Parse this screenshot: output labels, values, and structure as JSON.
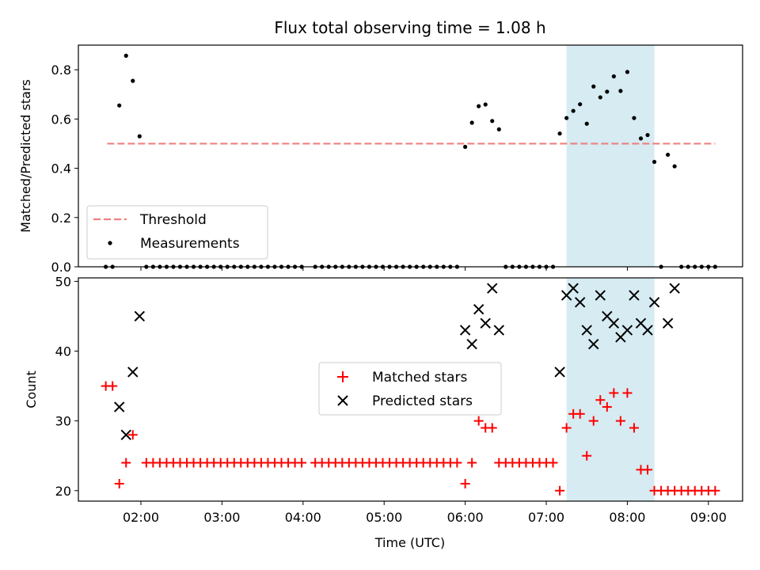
{
  "chart_data": [
    {
      "type": "scatter",
      "title": "Flux total observing time = 1.08 h",
      "xlabel": "",
      "ylabel": "Matched/Predicted stars",
      "ylim": [
        0,
        0.9
      ],
      "yticks": [
        "0.0",
        "0.2",
        "0.4",
        "0.6",
        "0.8"
      ],
      "grid": false,
      "legend_position": "lower-left",
      "highlight_band": {
        "start": "07:15",
        "end": "08:20",
        "color": "#add8e6"
      },
      "series": [
        {
          "name": "Threshold",
          "style": "dashed-line",
          "color": "#f08080",
          "points": [
            {
              "x": "01:35",
              "y": 0.5
            },
            {
              "x": "09:05",
              "y": 0.5
            }
          ]
        },
        {
          "name": "Measurements",
          "style": "dot",
          "color": "#000000",
          "points": [
            {
              "x": "01:34",
              "y": 0
            },
            {
              "x": "01:39",
              "y": 0
            },
            {
              "x": "01:44",
              "y": 0.655
            },
            {
              "x": "01:49",
              "y": 0.857
            },
            {
              "x": "01:54",
              "y": 0.755
            },
            {
              "x": "01:59",
              "y": 0.53
            },
            {
              "x": "02:04",
              "y": 0
            },
            {
              "x": "02:09",
              "y": 0
            },
            {
              "x": "02:14",
              "y": 0
            },
            {
              "x": "02:19",
              "y": 0
            },
            {
              "x": "02:24",
              "y": 0
            },
            {
              "x": "02:29",
              "y": 0
            },
            {
              "x": "02:34",
              "y": 0
            },
            {
              "x": "02:39",
              "y": 0
            },
            {
              "x": "02:44",
              "y": 0
            },
            {
              "x": "02:49",
              "y": 0
            },
            {
              "x": "02:54",
              "y": 0
            },
            {
              "x": "02:59",
              "y": 0
            },
            {
              "x": "03:04",
              "y": 0
            },
            {
              "x": "03:09",
              "y": 0
            },
            {
              "x": "03:14",
              "y": 0
            },
            {
              "x": "03:19",
              "y": 0
            },
            {
              "x": "03:24",
              "y": 0
            },
            {
              "x": "03:29",
              "y": 0
            },
            {
              "x": "03:34",
              "y": 0
            },
            {
              "x": "03:39",
              "y": 0
            },
            {
              "x": "03:44",
              "y": 0
            },
            {
              "x": "03:49",
              "y": 0
            },
            {
              "x": "03:54",
              "y": 0
            },
            {
              "x": "03:59",
              "y": 0
            },
            {
              "x": "04:09",
              "y": 0
            },
            {
              "x": "04:14",
              "y": 0
            },
            {
              "x": "04:19",
              "y": 0
            },
            {
              "x": "04:24",
              "y": 0
            },
            {
              "x": "04:29",
              "y": 0
            },
            {
              "x": "04:34",
              "y": 0
            },
            {
              "x": "04:39",
              "y": 0
            },
            {
              "x": "04:44",
              "y": 0
            },
            {
              "x": "04:49",
              "y": 0
            },
            {
              "x": "04:54",
              "y": 0
            },
            {
              "x": "04:59",
              "y": 0
            },
            {
              "x": "05:04",
              "y": 0
            },
            {
              "x": "05:09",
              "y": 0
            },
            {
              "x": "05:14",
              "y": 0
            },
            {
              "x": "05:19",
              "y": 0
            },
            {
              "x": "05:24",
              "y": 0
            },
            {
              "x": "05:29",
              "y": 0
            },
            {
              "x": "05:34",
              "y": 0
            },
            {
              "x": "05:39",
              "y": 0
            },
            {
              "x": "05:44",
              "y": 0
            },
            {
              "x": "05:49",
              "y": 0
            },
            {
              "x": "05:54",
              "y": 0
            },
            {
              "x": "06:00",
              "y": 0.487
            },
            {
              "x": "06:05",
              "y": 0.585
            },
            {
              "x": "06:10",
              "y": 0.652
            },
            {
              "x": "06:15",
              "y": 0.659
            },
            {
              "x": "06:20",
              "y": 0.592
            },
            {
              "x": "06:25",
              "y": 0.558
            },
            {
              "x": "06:30",
              "y": 0
            },
            {
              "x": "06:35",
              "y": 0
            },
            {
              "x": "06:40",
              "y": 0
            },
            {
              "x": "06:45",
              "y": 0
            },
            {
              "x": "06:50",
              "y": 0
            },
            {
              "x": "06:55",
              "y": 0
            },
            {
              "x": "07:00",
              "y": 0
            },
            {
              "x": "07:05",
              "y": 0
            },
            {
              "x": "07:10",
              "y": 0.541
            },
            {
              "x": "07:15",
              "y": 0.604
            },
            {
              "x": "07:20",
              "y": 0.633
            },
            {
              "x": "07:25",
              "y": 0.66
            },
            {
              "x": "07:30",
              "y": 0.581
            },
            {
              "x": "07:35",
              "y": 0.732
            },
            {
              "x": "07:40",
              "y": 0.688
            },
            {
              "x": "07:45",
              "y": 0.711
            },
            {
              "x": "07:50",
              "y": 0.773
            },
            {
              "x": "07:55",
              "y": 0.714
            },
            {
              "x": "08:00",
              "y": 0.791
            },
            {
              "x": "08:05",
              "y": 0.604
            },
            {
              "x": "08:10",
              "y": 0.521
            },
            {
              "x": "08:15",
              "y": 0.535
            },
            {
              "x": "08:20",
              "y": 0.426
            },
            {
              "x": "08:25",
              "y": 0
            },
            {
              "x": "08:30",
              "y": 0.455
            },
            {
              "x": "08:35",
              "y": 0.408
            },
            {
              "x": "08:40",
              "y": 0
            },
            {
              "x": "08:45",
              "y": 0
            },
            {
              "x": "08:50",
              "y": 0
            },
            {
              "x": "08:55",
              "y": 0
            },
            {
              "x": "09:00",
              "y": 0
            },
            {
              "x": "09:05",
              "y": 0
            }
          ]
        }
      ]
    },
    {
      "type": "scatter",
      "title": "",
      "xlabel": "Time (UTC)",
      "ylabel": "Count",
      "ylim": [
        18.5,
        50.5
      ],
      "yticks": [
        "20",
        "30",
        "40",
        "50"
      ],
      "xticks": [
        "02:00",
        "03:00",
        "04:00",
        "05:00",
        "06:00",
        "07:00",
        "08:00",
        "09:00"
      ],
      "grid": false,
      "legend_position": "center",
      "highlight_band": {
        "start": "07:15",
        "end": "08:20",
        "color": "#add8e6"
      },
      "series": [
        {
          "name": "Matched stars",
          "marker": "plus",
          "color": "#ff0000",
          "points": [
            {
              "x": "01:34",
              "y": 35
            },
            {
              "x": "01:39",
              "y": 35
            },
            {
              "x": "01:44",
              "y": 21
            },
            {
              "x": "01:49",
              "y": 24
            },
            {
              "x": "01:54",
              "y": 28
            },
            {
              "x": "02:04",
              "y": 24
            },
            {
              "x": "02:09",
              "y": 24
            },
            {
              "x": "02:14",
              "y": 24
            },
            {
              "x": "02:19",
              "y": 24
            },
            {
              "x": "02:24",
              "y": 24
            },
            {
              "x": "02:29",
              "y": 24
            },
            {
              "x": "02:34",
              "y": 24
            },
            {
              "x": "02:39",
              "y": 24
            },
            {
              "x": "02:44",
              "y": 24
            },
            {
              "x": "02:49",
              "y": 24
            },
            {
              "x": "02:54",
              "y": 24
            },
            {
              "x": "02:59",
              "y": 24
            },
            {
              "x": "03:04",
              "y": 24
            },
            {
              "x": "03:09",
              "y": 24
            },
            {
              "x": "03:14",
              "y": 24
            },
            {
              "x": "03:19",
              "y": 24
            },
            {
              "x": "03:24",
              "y": 24
            },
            {
              "x": "03:29",
              "y": 24
            },
            {
              "x": "03:34",
              "y": 24
            },
            {
              "x": "03:39",
              "y": 24
            },
            {
              "x": "03:44",
              "y": 24
            },
            {
              "x": "03:49",
              "y": 24
            },
            {
              "x": "03:54",
              "y": 24
            },
            {
              "x": "03:59",
              "y": 24
            },
            {
              "x": "04:09",
              "y": 24
            },
            {
              "x": "04:14",
              "y": 24
            },
            {
              "x": "04:19",
              "y": 24
            },
            {
              "x": "04:24",
              "y": 24
            },
            {
              "x": "04:29",
              "y": 24
            },
            {
              "x": "04:34",
              "y": 24
            },
            {
              "x": "04:39",
              "y": 24
            },
            {
              "x": "04:44",
              "y": 24
            },
            {
              "x": "04:49",
              "y": 24
            },
            {
              "x": "04:54",
              "y": 24
            },
            {
              "x": "04:59",
              "y": 24
            },
            {
              "x": "05:04",
              "y": 24
            },
            {
              "x": "05:09",
              "y": 24
            },
            {
              "x": "05:14",
              "y": 24
            },
            {
              "x": "05:19",
              "y": 24
            },
            {
              "x": "05:24",
              "y": 24
            },
            {
              "x": "05:29",
              "y": 24
            },
            {
              "x": "05:34",
              "y": 24
            },
            {
              "x": "05:39",
              "y": 24
            },
            {
              "x": "05:44",
              "y": 24
            },
            {
              "x": "05:49",
              "y": 24
            },
            {
              "x": "05:54",
              "y": 24
            },
            {
              "x": "06:00",
              "y": 21
            },
            {
              "x": "06:05",
              "y": 24
            },
            {
              "x": "06:10",
              "y": 30
            },
            {
              "x": "06:15",
              "y": 29
            },
            {
              "x": "06:20",
              "y": 29
            },
            {
              "x": "06:25",
              "y": 24
            },
            {
              "x": "06:30",
              "y": 24
            },
            {
              "x": "06:35",
              "y": 24
            },
            {
              "x": "06:40",
              "y": 24
            },
            {
              "x": "06:45",
              "y": 24
            },
            {
              "x": "06:50",
              "y": 24
            },
            {
              "x": "06:55",
              "y": 24
            },
            {
              "x": "07:00",
              "y": 24
            },
            {
              "x": "07:05",
              "y": 24
            },
            {
              "x": "07:10",
              "y": 20
            },
            {
              "x": "07:15",
              "y": 29
            },
            {
              "x": "07:20",
              "y": 31
            },
            {
              "x": "07:25",
              "y": 31
            },
            {
              "x": "07:30",
              "y": 25
            },
            {
              "x": "07:35",
              "y": 30
            },
            {
              "x": "07:40",
              "y": 33
            },
            {
              "x": "07:45",
              "y": 32
            },
            {
              "x": "07:50",
              "y": 34
            },
            {
              "x": "07:55",
              "y": 30
            },
            {
              "x": "08:00",
              "y": 34
            },
            {
              "x": "08:05",
              "y": 29
            },
            {
              "x": "08:10",
              "y": 23
            },
            {
              "x": "08:15",
              "y": 23
            },
            {
              "x": "08:20",
              "y": 20
            },
            {
              "x": "08:25",
              "y": 20
            },
            {
              "x": "08:30",
              "y": 20
            },
            {
              "x": "08:35",
              "y": 20
            },
            {
              "x": "08:40",
              "y": 20
            },
            {
              "x": "08:45",
              "y": 20
            },
            {
              "x": "08:50",
              "y": 20
            },
            {
              "x": "08:55",
              "y": 20
            },
            {
              "x": "09:00",
              "y": 20
            },
            {
              "x": "09:05",
              "y": 20
            }
          ]
        },
        {
          "name": "Predicted stars",
          "marker": "x",
          "color": "#000000",
          "points": [
            {
              "x": "01:44",
              "y": 32
            },
            {
              "x": "01:49",
              "y": 28
            },
            {
              "x": "01:54",
              "y": 37
            },
            {
              "x": "01:59",
              "y": 45
            },
            {
              "x": "06:00",
              "y": 43
            },
            {
              "x": "06:05",
              "y": 41
            },
            {
              "x": "06:10",
              "y": 46
            },
            {
              "x": "06:15",
              "y": 44
            },
            {
              "x": "06:20",
              "y": 49
            },
            {
              "x": "06:25",
              "y": 43
            },
            {
              "x": "07:10",
              "y": 37
            },
            {
              "x": "07:15",
              "y": 48
            },
            {
              "x": "07:20",
              "y": 49
            },
            {
              "x": "07:25",
              "y": 47
            },
            {
              "x": "07:30",
              "y": 43
            },
            {
              "x": "07:35",
              "y": 41
            },
            {
              "x": "07:40",
              "y": 48
            },
            {
              "x": "07:45",
              "y": 45
            },
            {
              "x": "07:50",
              "y": 44
            },
            {
              "x": "07:55",
              "y": 42
            },
            {
              "x": "08:00",
              "y": 43
            },
            {
              "x": "08:05",
              "y": 48
            },
            {
              "x": "08:10",
              "y": 44
            },
            {
              "x": "08:15",
              "y": 43
            },
            {
              "x": "08:20",
              "y": 47
            },
            {
              "x": "08:30",
              "y": 44
            },
            {
              "x": "08:35",
              "y": 49
            }
          ]
        }
      ]
    }
  ]
}
